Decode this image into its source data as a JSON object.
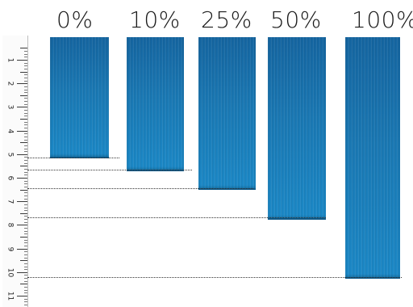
{
  "labels": [
    "0%",
    "10%",
    "25%",
    "50%",
    "100%"
  ],
  "ruler_numbers": [
    "1",
    "2",
    "3",
    "4",
    "5",
    "6",
    "7",
    "8",
    "9",
    "10",
    "11"
  ],
  "colors": {
    "strip": "#1a78b3",
    "strip_dark": "#0e5a8a"
  }
}
